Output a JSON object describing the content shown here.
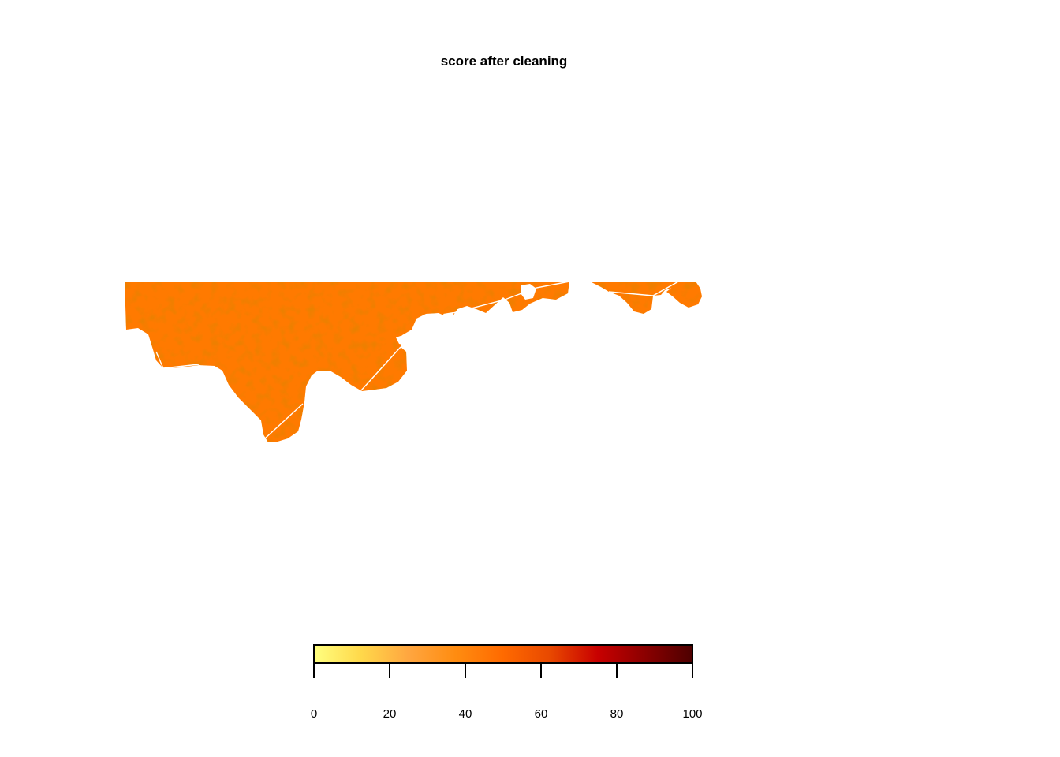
{
  "title": "score after cleaning",
  "legend": {
    "min": 0,
    "max": 100,
    "ticks": [
      "0",
      "20",
      "40",
      "60",
      "80",
      "100"
    ],
    "colors": [
      "#FFFF80",
      "#FFD84A",
      "#FFA640",
      "#FF8C10",
      "#FF6A00",
      "#E84800",
      "#C80000",
      "#8B0000",
      "#4D0000"
    ]
  },
  "map": {
    "fill_color": "#FF7A00",
    "texture_color": "#D94A00",
    "boundary_color": "#FFFFFF",
    "typical_score": 60
  }
}
